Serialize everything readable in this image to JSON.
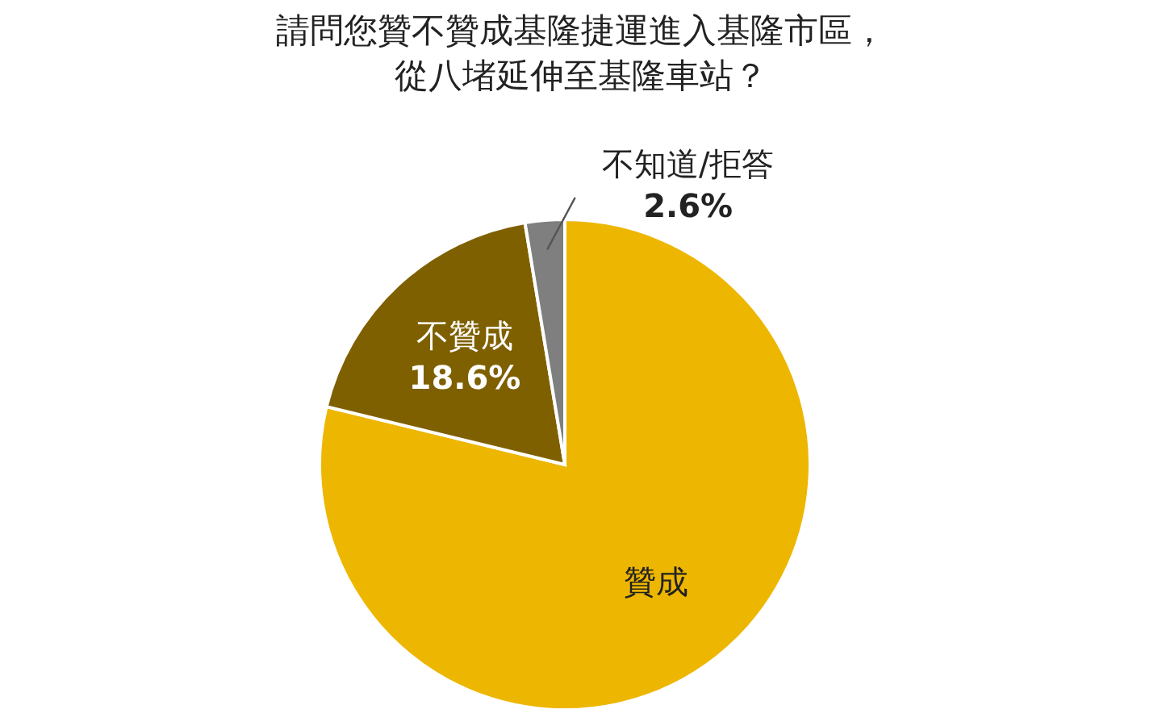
{
  "chart_data": {
    "type": "pie",
    "title": "請問您贊不贊成基隆捷運進入基隆市區，從八堵延伸至基隆車站？",
    "categories": [
      "贊成",
      "不贊成",
      "不知道/拒答"
    ],
    "values": [
      78.8,
      18.6,
      2.6
    ],
    "colors": [
      "#edb600",
      "#7f6000",
      "#7f7f7f"
    ],
    "value_labels": [
      null,
      "18.6%",
      "2.6%"
    ]
  }
}
